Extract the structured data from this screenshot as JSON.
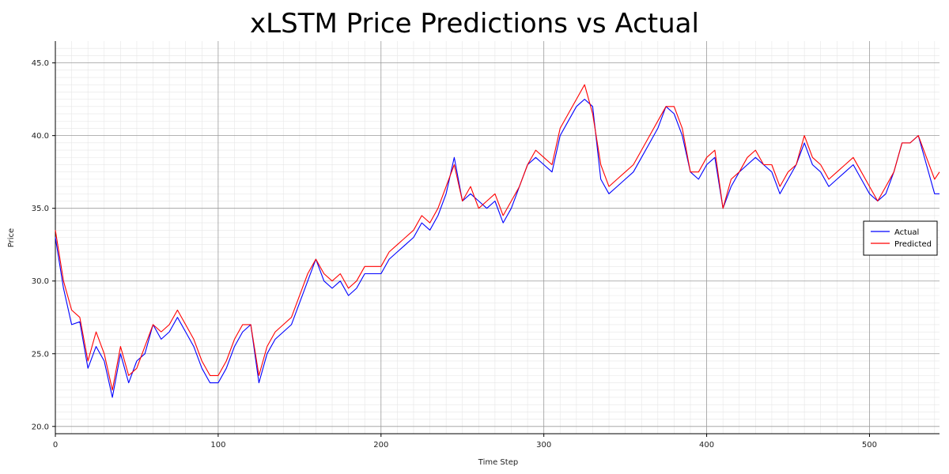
{
  "chart_data": {
    "type": "line",
    "title": "xLSTM Price Predictions vs Actual",
    "xlabel": "Time Step",
    "ylabel": "Price",
    "xlim": [
      0,
      543
    ],
    "ylim": [
      19.5,
      46.5
    ],
    "x_ticks": [
      0,
      100,
      200,
      300,
      400,
      500
    ],
    "y_ticks": [
      20.0,
      25.0,
      30.0,
      35.0,
      40.0,
      45.0
    ],
    "x_tick_labels": [
      "0",
      "100",
      "200",
      "300",
      "400",
      "500"
    ],
    "y_tick_labels": [
      "20.0",
      "25.0",
      "30.0",
      "35.0",
      "40.0",
      "45.0"
    ],
    "grid": true,
    "legend_position": "right",
    "colors": {
      "actual": "#0000ff",
      "predicted": "#ff0000"
    },
    "series": [
      {
        "name": "Actual",
        "x": [
          0,
          5,
          10,
          15,
          20,
          25,
          30,
          35,
          40,
          45,
          50,
          55,
          60,
          65,
          70,
          75,
          80,
          85,
          90,
          95,
          100,
          105,
          110,
          115,
          120,
          125,
          130,
          135,
          140,
          145,
          150,
          155,
          160,
          165,
          170,
          175,
          180,
          185,
          190,
          195,
          200,
          205,
          210,
          215,
          220,
          225,
          230,
          235,
          240,
          245,
          250,
          255,
          260,
          265,
          270,
          275,
          280,
          285,
          290,
          295,
          300,
          305,
          310,
          315,
          320,
          325,
          330,
          335,
          340,
          345,
          350,
          355,
          360,
          365,
          370,
          375,
          380,
          385,
          390,
          395,
          400,
          405,
          410,
          415,
          420,
          425,
          430,
          435,
          440,
          445,
          450,
          455,
          460,
          465,
          470,
          475,
          480,
          485,
          490,
          495,
          500,
          505,
          510,
          515,
          520,
          525,
          530,
          535,
          540,
          543
        ],
        "values": [
          33.0,
          29.5,
          27.0,
          27.2,
          24.0,
          25.5,
          24.5,
          22.0,
          25.0,
          23.0,
          24.5,
          25.0,
          27.0,
          26.0,
          26.5,
          27.5,
          26.5,
          25.5,
          24.0,
          23.0,
          23.0,
          24.0,
          25.5,
          26.5,
          27.0,
          23.0,
          25.0,
          26.0,
          26.5,
          27.0,
          28.5,
          30.0,
          31.5,
          30.0,
          29.5,
          30.0,
          29.0,
          29.5,
          30.5,
          30.5,
          30.5,
          31.5,
          32.0,
          32.5,
          33.0,
          34.0,
          33.5,
          34.5,
          36.0,
          38.5,
          35.5,
          36.0,
          35.5,
          35.0,
          35.5,
          34.0,
          35.0,
          36.5,
          38.0,
          38.5,
          38.0,
          37.5,
          40.0,
          41.0,
          42.0,
          42.5,
          42.0,
          37.0,
          36.0,
          36.5,
          37.0,
          37.5,
          38.5,
          39.5,
          40.5,
          42.0,
          41.5,
          40.0,
          37.5,
          37.0,
          38.0,
          38.5,
          35.0,
          36.5,
          37.5,
          38.0,
          38.5,
          38.0,
          37.5,
          36.0,
          37.0,
          38.0,
          39.5,
          38.0,
          37.5,
          36.5,
          37.0,
          37.5,
          38.0,
          37.0,
          36.0,
          35.5,
          36.0,
          37.5,
          39.5,
          39.5,
          40.0,
          38.0,
          36.0,
          36.0
        ]
      },
      {
        "name": "Predicted",
        "x": [
          0,
          5,
          10,
          15,
          20,
          25,
          30,
          35,
          40,
          45,
          50,
          55,
          60,
          65,
          70,
          75,
          80,
          85,
          90,
          95,
          100,
          105,
          110,
          115,
          120,
          125,
          130,
          135,
          140,
          145,
          150,
          155,
          160,
          165,
          170,
          175,
          180,
          185,
          190,
          195,
          200,
          205,
          210,
          215,
          220,
          225,
          230,
          235,
          240,
          245,
          250,
          255,
          260,
          265,
          270,
          275,
          280,
          285,
          290,
          295,
          300,
          305,
          310,
          315,
          320,
          325,
          330,
          335,
          340,
          345,
          350,
          355,
          360,
          365,
          370,
          375,
          380,
          385,
          390,
          395,
          400,
          405,
          410,
          415,
          420,
          425,
          430,
          435,
          440,
          445,
          450,
          455,
          460,
          465,
          470,
          475,
          480,
          485,
          490,
          495,
          500,
          505,
          510,
          515,
          520,
          525,
          530,
          535,
          540,
          543
        ],
        "values": [
          33.5,
          30.0,
          28.0,
          27.5,
          24.5,
          26.5,
          25.0,
          22.5,
          25.5,
          23.5,
          24.0,
          25.5,
          27.0,
          26.5,
          27.0,
          28.0,
          27.0,
          26.0,
          24.5,
          23.5,
          23.5,
          24.5,
          26.0,
          27.0,
          27.0,
          23.5,
          25.5,
          26.5,
          27.0,
          27.5,
          29.0,
          30.5,
          31.5,
          30.5,
          30.0,
          30.5,
          29.5,
          30.0,
          31.0,
          31.0,
          31.0,
          32.0,
          32.5,
          33.0,
          33.5,
          34.5,
          34.0,
          35.0,
          36.5,
          38.0,
          35.5,
          36.5,
          35.0,
          35.5,
          36.0,
          34.5,
          35.5,
          36.5,
          38.0,
          39.0,
          38.5,
          38.0,
          40.5,
          41.5,
          42.5,
          43.5,
          41.5,
          38.0,
          36.5,
          37.0,
          37.5,
          38.0,
          39.0,
          40.0,
          41.0,
          42.0,
          42.0,
          40.5,
          37.5,
          37.5,
          38.5,
          39.0,
          35.0,
          37.0,
          37.5,
          38.5,
          39.0,
          38.0,
          38.0,
          36.5,
          37.5,
          38.0,
          40.0,
          38.5,
          38.0,
          37.0,
          37.5,
          38.0,
          38.5,
          37.5,
          36.5,
          35.5,
          36.5,
          37.5,
          39.5,
          39.5,
          40.0,
          38.5,
          37.0,
          37.5
        ]
      }
    ]
  }
}
